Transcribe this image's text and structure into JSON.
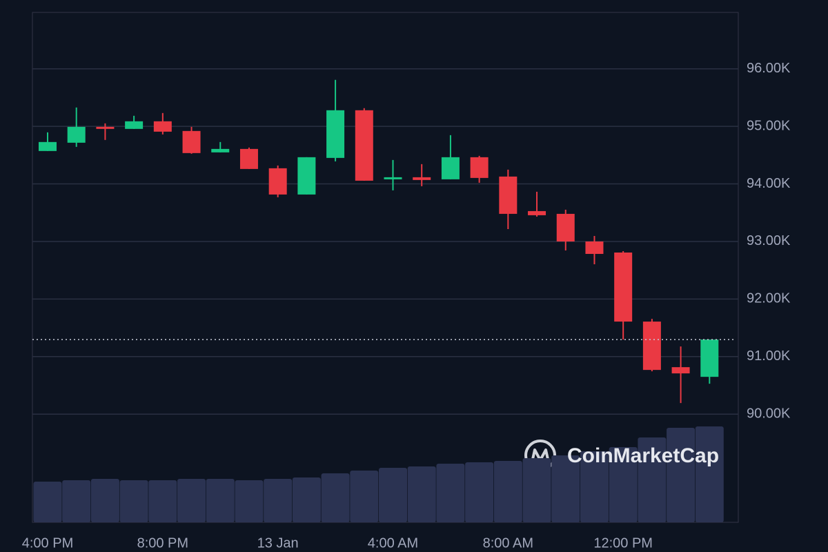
{
  "chart_data": {
    "type": "candlestick",
    "watermark": "CoinMarketCap",
    "categories": [
      "4:00 PM",
      null,
      null,
      null,
      "8:00 PM",
      null,
      null,
      null,
      "13 Jan",
      null,
      null,
      null,
      "4:00 AM",
      null,
      null,
      null,
      "8:00 AM",
      null,
      null,
      null,
      "12:00 PM",
      null,
      null,
      null
    ],
    "open": [
      94572,
      94716,
      94992,
      94956,
      95088,
      94920,
      94548,
      94608,
      94272,
      93816,
      94452,
      95280,
      94092,
      94116,
      94080,
      94464,
      94128,
      93528,
      93480,
      93000,
      92808,
      91608,
      90816,
      90648
    ],
    "high": [
      94896,
      95328,
      95052,
      95184,
      95232,
      94992,
      94728,
      94632,
      94320,
      94464,
      95808,
      95316,
      94416,
      94344,
      94848,
      94488,
      94248,
      93864,
      93552,
      93096,
      92832,
      91656,
      91176,
      91296
    ],
    "low": [
      94572,
      94644,
      94764,
      94956,
      94860,
      94524,
      94548,
      94260,
      93768,
      93816,
      94392,
      94056,
      93888,
      93960,
      94080,
      94020,
      93216,
      93432,
      92844,
      92604,
      91296,
      90744,
      90192,
      90528
    ],
    "close": [
      94728,
      94992,
      94956,
      95088,
      94908,
      94536,
      94608,
      94260,
      93816,
      94464,
      95280,
      94056,
      94116,
      94068,
      94464,
      94104,
      93480,
      93456,
      93000,
      92784,
      91608,
      90768,
      90708,
      91296
    ],
    "volume": [
      59,
      61,
      63,
      61,
      61,
      63,
      63,
      61,
      63,
      65,
      71,
      75,
      79,
      81,
      85,
      87,
      89,
      93,
      97,
      103,
      109,
      123,
      137,
      139
    ],
    "up_color": "#16c784",
    "down_color": "#ea3943",
    "volume_color": "#2b3352",
    "ylim": [
      88120,
      96980
    ],
    "yticks": [
      {
        "value": 90000,
        "label": "90.00K"
      },
      {
        "value": 91000,
        "label": "91.00K"
      },
      {
        "value": 92000,
        "label": "92.00K"
      },
      {
        "value": 93000,
        "label": "93.00K"
      },
      {
        "value": 94000,
        "label": "94.00K"
      },
      {
        "value": 95000,
        "label": "95.00K"
      },
      {
        "value": 96000,
        "label": "96.00K"
      }
    ],
    "grid": true
  }
}
